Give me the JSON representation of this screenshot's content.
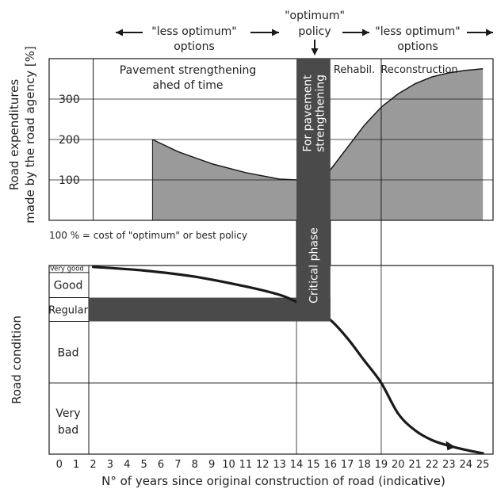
{
  "chart_data": {
    "type": "area",
    "header": {
      "left": [
        "\"less optimum\"",
        "options"
      ],
      "center": [
        "\"optimum\"",
        "policy"
      ],
      "right": [
        "\"less optimum\"",
        "options"
      ]
    },
    "x": {
      "label": "N° of years since original construction of road (indicative)",
      "ticks": [
        "0",
        "1",
        "2",
        "3",
        "4",
        "5",
        "6",
        "7",
        "8",
        "9",
        "10",
        "11",
        "12",
        "13",
        "14",
        "15",
        "16",
        "17",
        "18",
        "19",
        "20",
        "21",
        "22",
        "23",
        "24",
        "25"
      ],
      "range": [
        -0.6,
        25.6
      ]
    },
    "top_panel": {
      "ylabel_lines": [
        "Road expenditures",
        "made by the road agency [%]"
      ],
      "yticks": [
        "100",
        "200",
        "300"
      ],
      "ylim": [
        0,
        400
      ],
      "footnote": "100 % = cost of \"optimum\" or best policy",
      "regions": [
        {
          "label_lines": [
            "Pavement strengthening",
            "ahed of time"
          ],
          "x_start": 2,
          "x_end": 14
        },
        {
          "label_lines": [
            "For pavement",
            "strengthening"
          ],
          "x_start": 14,
          "x_end": 16
        },
        {
          "label": "Rehabil.",
          "x_start": 16,
          "x_end": 19
        },
        {
          "label": "Reconstruction",
          "x_start": 19,
          "x_end": 25
        }
      ],
      "series": [
        {
          "x": [
            5.5,
            5.5,
            7,
            9,
            11,
            13,
            14,
            15,
            16,
            17,
            18,
            19,
            20,
            21,
            22,
            23,
            24,
            25
          ],
          "y": [
            0,
            200,
            170,
            140,
            118,
            102,
            100,
            106,
            125,
            180,
            235,
            280,
            313,
            338,
            355,
            365,
            371,
            375
          ]
        }
      ]
    },
    "critical_phase": {
      "label": "Critical phase",
      "x_start": 14,
      "x_end": 16
    },
    "bottom_panel": {
      "ylabel": "Road condition",
      "bands": [
        {
          "label": "Very good",
          "from": 0,
          "to": 0.25
        },
        {
          "label": "Good",
          "from": 0.25,
          "to": 1.15
        },
        {
          "label": "Regular",
          "from": 1.15,
          "to": 2.0
        },
        {
          "label": "Bad",
          "from": 2.0,
          "to": 4.2
        },
        {
          "label_lines": [
            "Very",
            "bad"
          ],
          "from": 4.2,
          "to": 6.75
        }
      ],
      "regular_band_end_x": 16,
      "series": [
        {
          "x": [
            2,
            5,
            8,
            11,
            13,
            14,
            15,
            16,
            17,
            18,
            19,
            20,
            21,
            22,
            23,
            24,
            25
          ],
          "y": [
            0.05,
            0.18,
            0.4,
            0.75,
            1.05,
            1.3,
            1.6,
            1.95,
            2.6,
            3.4,
            4.2,
            5.3,
            5.9,
            6.25,
            6.45,
            6.6,
            6.72
          ]
        }
      ]
    },
    "grid": true,
    "colors": {
      "fill": "#9a9a9a",
      "dark": "#4a4a4a",
      "line": "#1a1a1a"
    }
  }
}
